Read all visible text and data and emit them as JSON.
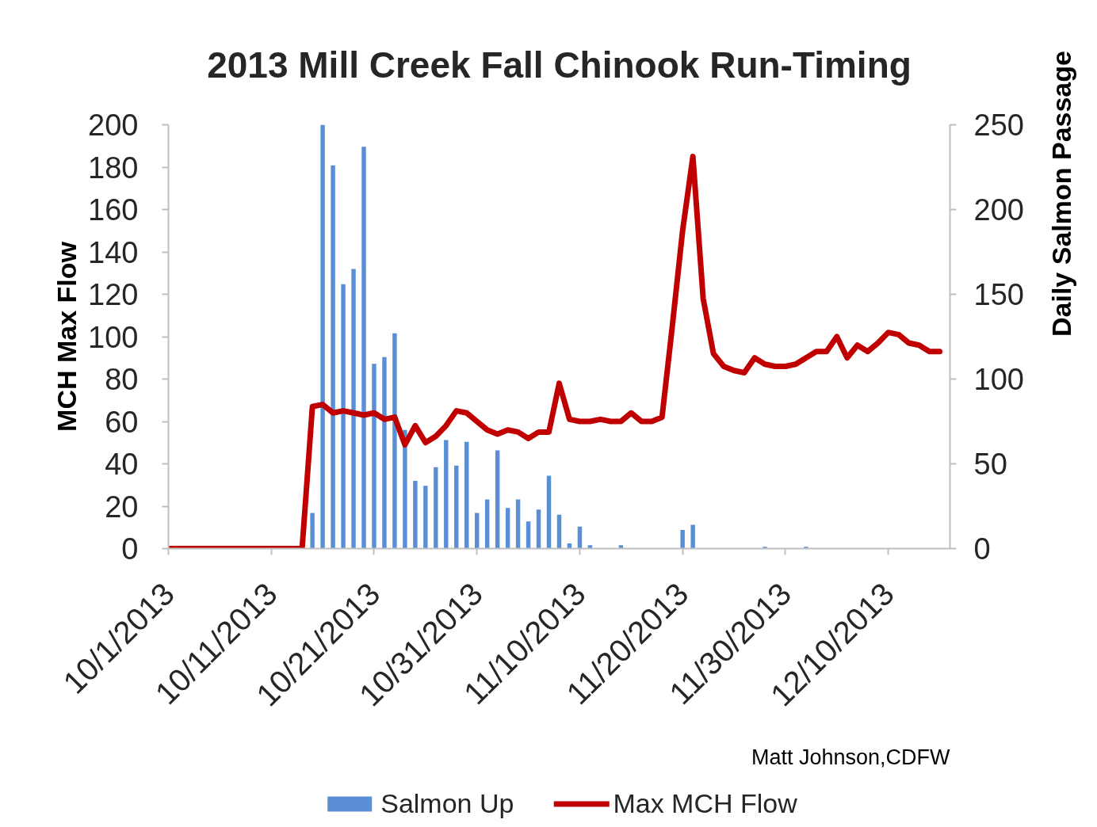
{
  "chart_data": {
    "type": "line",
    "title": "2013 Mill Creek Fall Chinook Run-Timing",
    "ylabel": "MCH Max Flow",
    "y2label": "Daily Salmon Passage",
    "annotations": [
      "Matt Johnson,CDFW"
    ],
    "x": [
      "2013-10-01",
      "2013-10-02",
      "2013-10-03",
      "2013-10-04",
      "2013-10-05",
      "2013-10-06",
      "2013-10-07",
      "2013-10-08",
      "2013-10-09",
      "2013-10-10",
      "2013-10-11",
      "2013-10-12",
      "2013-10-13",
      "2013-10-14",
      "2013-10-15",
      "2013-10-16",
      "2013-10-17",
      "2013-10-18",
      "2013-10-19",
      "2013-10-20",
      "2013-10-21",
      "2013-10-22",
      "2013-10-23",
      "2013-10-24",
      "2013-10-25",
      "2013-10-26",
      "2013-10-27",
      "2013-10-28",
      "2013-10-29",
      "2013-10-30",
      "2013-10-31",
      "2013-11-01",
      "2013-11-02",
      "2013-11-03",
      "2013-11-04",
      "2013-11-05",
      "2013-11-06",
      "2013-11-07",
      "2013-11-08",
      "2013-11-09",
      "2013-11-10",
      "2013-11-11",
      "2013-11-12",
      "2013-11-13",
      "2013-11-14",
      "2013-11-15",
      "2013-11-16",
      "2013-11-17",
      "2013-11-18",
      "2013-11-19",
      "2013-11-20",
      "2013-11-21",
      "2013-11-22",
      "2013-11-23",
      "2013-11-24",
      "2013-11-25",
      "2013-11-26",
      "2013-11-27",
      "2013-11-28",
      "2013-11-29",
      "2013-11-30",
      "2013-12-01",
      "2013-12-02",
      "2013-12-03",
      "2013-12-04",
      "2013-12-05",
      "2013-12-06",
      "2013-12-07",
      "2013-12-08",
      "2013-12-09",
      "2013-12-10",
      "2013-12-11",
      "2013-12-12",
      "2013-12-13",
      "2013-12-14",
      "2013-12-15"
    ],
    "series": [
      {
        "name": "Salmon Up",
        "type": "bar",
        "axis": "y2",
        "color": "#5b8fd5",
        "x": [
          "2013-10-15",
          "2013-10-16",
          "2013-10-17",
          "2013-10-18",
          "2013-10-19",
          "2013-10-20",
          "2013-10-21",
          "2013-10-22",
          "2013-10-23",
          "2013-10-24",
          "2013-10-25",
          "2013-10-26",
          "2013-10-27",
          "2013-10-28",
          "2013-10-29",
          "2013-10-30",
          "2013-10-31",
          "2013-11-01",
          "2013-11-02",
          "2013-11-03",
          "2013-11-04",
          "2013-11-05",
          "2013-11-06",
          "2013-11-07",
          "2013-11-08",
          "2013-11-09",
          "2013-11-10",
          "2013-11-11",
          "2013-11-14",
          "2013-11-20",
          "2013-11-21",
          "2013-11-28",
          "2013-12-02"
        ],
        "values": [
          21,
          250,
          226,
          156,
          165,
          237,
          109,
          113,
          127,
          70,
          40,
          37,
          48,
          64,
          49,
          63,
          21,
          29,
          58,
          24,
          29,
          16,
          23,
          43,
          20,
          3,
          13,
          2,
          2,
          11,
          14,
          1,
          1
        ]
      },
      {
        "name": "Max MCH Flow",
        "color": "#c00000",
        "values": [
          0,
          0,
          0,
          0,
          0,
          0,
          0,
          0,
          0,
          0,
          0,
          0,
          0,
          0,
          67,
          68,
          64,
          65,
          64,
          63,
          64,
          61,
          62,
          49,
          58,
          50,
          53,
          58,
          65,
          64,
          60,
          56,
          54,
          56,
          55,
          52,
          55,
          55,
          78,
          61,
          60,
          60,
          61,
          60,
          60,
          64,
          60,
          60,
          62,
          105,
          150,
          185,
          118,
          92,
          86,
          84,
          83,
          90,
          87,
          86,
          86,
          87,
          90,
          93,
          93,
          100,
          90,
          96,
          93,
          97,
          102,
          101,
          97,
          96,
          93,
          93
        ]
      }
    ],
    "xlim": [
      "2013-10-01",
      "2013-12-16"
    ],
    "xticks": [
      {
        "value": "2013-10-01",
        "label": "10/1/2013"
      },
      {
        "value": "2013-10-11",
        "label": "10/11/2013"
      },
      {
        "value": "2013-10-21",
        "label": "10/21/2013"
      },
      {
        "value": "2013-10-31",
        "label": "10/31/2013"
      },
      {
        "value": "2013-11-10",
        "label": "11/10/2013"
      },
      {
        "value": "2013-11-20",
        "label": "11/20/2013"
      },
      {
        "value": "2013-11-30",
        "label": "11/30/2013"
      },
      {
        "value": "2013-12-10",
        "label": "12/10/2013"
      }
    ],
    "ylim": [
      0,
      200
    ],
    "yticks": [
      0,
      20,
      40,
      60,
      80,
      100,
      120,
      140,
      160,
      180,
      200
    ],
    "y2lim": [
      0,
      250
    ],
    "y2ticks": [
      0,
      50,
      100,
      150,
      200,
      250
    ],
    "grid": false,
    "legend": "bottom",
    "line_style": "solid"
  }
}
